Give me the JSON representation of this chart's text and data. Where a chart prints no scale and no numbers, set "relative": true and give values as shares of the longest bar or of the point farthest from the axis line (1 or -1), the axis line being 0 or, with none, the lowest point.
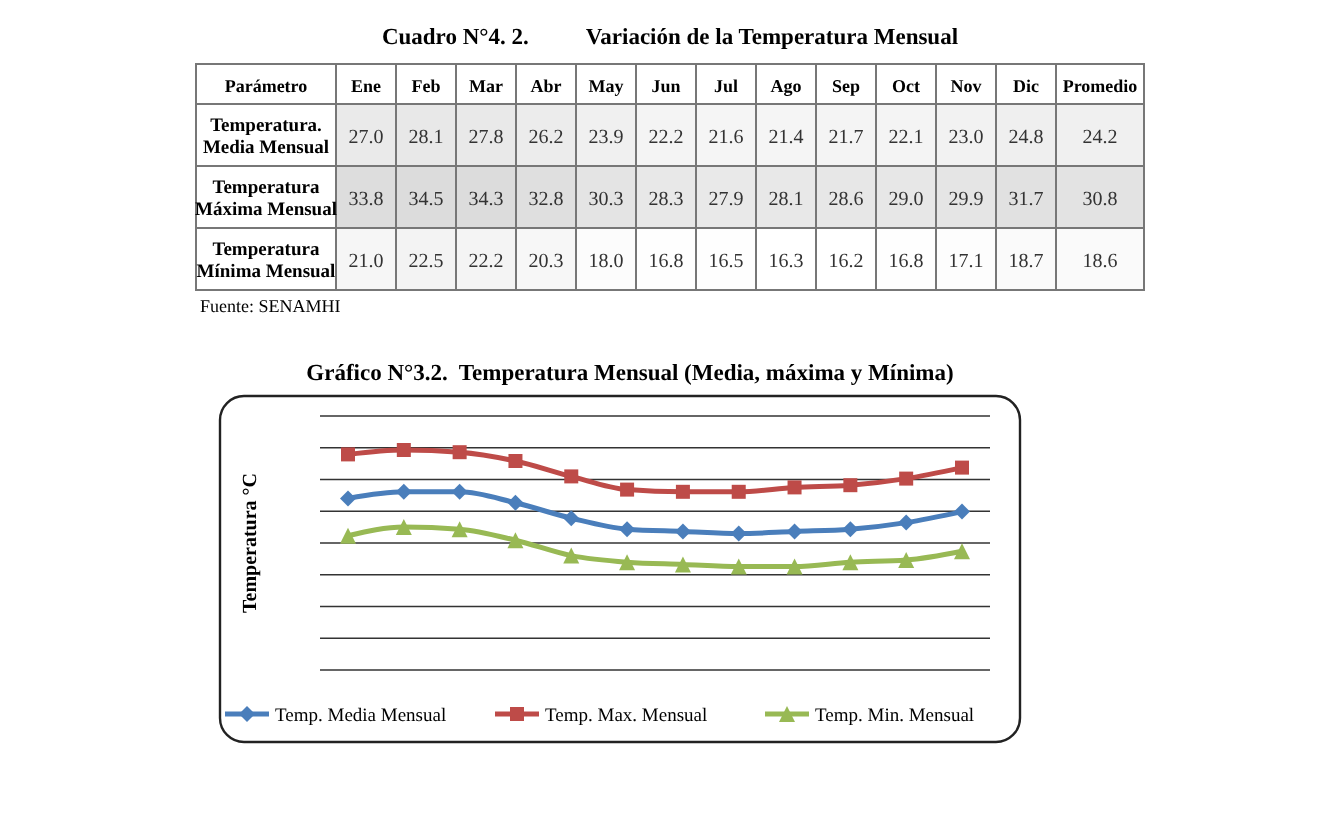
{
  "chart_data": [
    {
      "type": "heatmap",
      "title": "Cuadro N°4. 2.          Variación de la Temperatura Mensual",
      "categories": [
        "Ene",
        "Feb",
        "Mar",
        "Abr",
        "May",
        "Jun",
        "Jul",
        "Ago",
        "Sep",
        "Oct",
        "Nov",
        "Dic",
        "Promedio"
      ],
      "y_categories": [
        "Temperatura. Media Mensual",
        "Temperatura Máxima Mensual",
        "Temperatura Mínima Mensual"
      ],
      "cells": [
        [
          27.0,
          28.1,
          27.8,
          26.2,
          23.9,
          22.2,
          21.6,
          21.4,
          21.7,
          22.1,
          23.0,
          24.8,
          24.2
        ],
        [
          33.8,
          34.5,
          34.3,
          32.8,
          30.3,
          28.3,
          27.9,
          28.1,
          28.6,
          29.0,
          29.9,
          31.7,
          30.8
        ],
        [
          21.0,
          22.5,
          22.2,
          20.3,
          18.0,
          16.8,
          16.5,
          16.3,
          16.2,
          16.8,
          17.1,
          18.7,
          18.6
        ]
      ],
      "cell_labels": [
        [
          "27.0",
          "28.1",
          "27.8",
          "26.2",
          "23.9",
          "22.2",
          "21.6",
          "21.4",
          "21.7",
          "22.1",
          "23.0",
          "24.8",
          "24.2"
        ],
        [
          "33.8",
          "34.5",
          "34.3",
          "32.8",
          "30.3",
          "28.3",
          "27.9",
          "28.1",
          "28.6",
          "29.0",
          "29.9",
          "31.7",
          "30.8"
        ],
        [
          "21.0",
          "22.5",
          "22.2",
          "20.3",
          "18.0",
          "16.8",
          "16.5",
          "16.3",
          "16.2",
          "16.8",
          "17.1",
          "18.7",
          "18.6"
        ]
      ],
      "annotations": [
        "Parámetro",
        "Fuente: SENAMHI"
      ]
    },
    {
      "type": "line",
      "title": "Gráfico N°3.2.  Temperatura Mensual (Media, máxima y Mínima)",
      "ylabel": "Temperatura °C",
      "relative": true,
      "categories": [
        null,
        null,
        null,
        null,
        null,
        null,
        null,
        null,
        null,
        null,
        null,
        null
      ],
      "series": [
        {
          "name": "Temp. Media Mensual",
          "color": "#4a7ebb",
          "marker": "diamond",
          "values": [
            0.78,
            0.81,
            0.81,
            0.76,
            0.69,
            0.64,
            0.63,
            0.62,
            0.63,
            0.64,
            0.67,
            0.72
          ]
        },
        {
          "name": "Temp. Max. Mensual",
          "color": "#be4b48",
          "marker": "square",
          "values": [
            0.98,
            1,
            0.99,
            0.95,
            0.88,
            0.82,
            0.81,
            0.81,
            0.83,
            0.84,
            0.87,
            0.92
          ]
        },
        {
          "name": "Temp. Min. Mensual",
          "color": "#98b954",
          "marker": "triangle",
          "values": [
            0.61,
            0.65,
            0.64,
            0.59,
            0.52,
            0.49,
            0.48,
            0.47,
            0.47,
            0.49,
            0.5,
            0.54
          ]
        }
      ],
      "grid": "y",
      "legend": "bottom"
    }
  ]
}
